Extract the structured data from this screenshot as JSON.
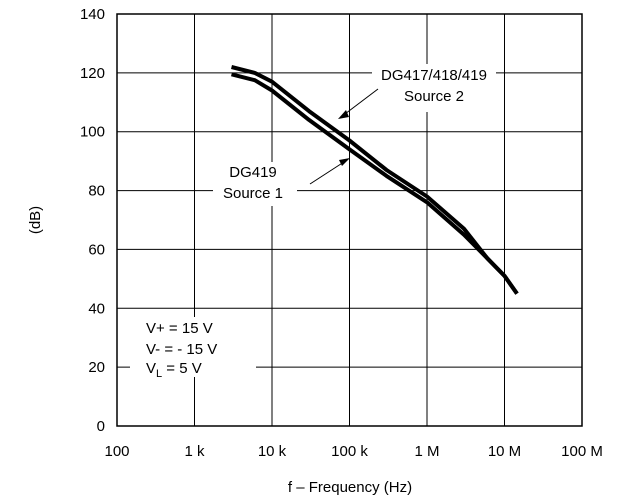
{
  "chart_data": {
    "type": "line",
    "title": "",
    "xlabel": "f – Frequency (Hz)",
    "ylabel": "(dB)",
    "xscale": "log",
    "xlim": [
      100,
      100000000
    ],
    "ylim": [
      0,
      140
    ],
    "grid": true,
    "xticks": [
      {
        "value": 100,
        "label": "100"
      },
      {
        "value": 1000,
        "label": "1 k"
      },
      {
        "value": 10000,
        "label": "10 k"
      },
      {
        "value": 100000,
        "label": "100 k"
      },
      {
        "value": 1000000,
        "label": "1 M"
      },
      {
        "value": 10000000,
        "label": "10 M"
      },
      {
        "value": 100000000,
        "label": "100 M"
      }
    ],
    "yticks": [
      {
        "value": 0,
        "label": "0"
      },
      {
        "value": 20,
        "label": "20"
      },
      {
        "value": 40,
        "label": "40"
      },
      {
        "value": 60,
        "label": "60"
      },
      {
        "value": 80,
        "label": "80"
      },
      {
        "value": 100,
        "label": "100"
      },
      {
        "value": 120,
        "label": "120"
      },
      {
        "value": 140,
        "label": "140"
      }
    ],
    "series": [
      {
        "name": "DG417/418/419 Source 2",
        "x": [
          3000,
          6000,
          10000,
          30000,
          100000,
          300000,
          1000000,
          3000000,
          6000000,
          10000000,
          14500000
        ],
        "y": [
          122,
          120,
          117,
          107,
          97,
          87,
          78,
          67,
          57,
          51,
          45
        ]
      },
      {
        "name": "DG419 Source 1",
        "x": [
          3000,
          6000,
          10000,
          30000,
          100000,
          300000,
          1000000,
          3000000,
          6000000,
          10000000,
          14500000
        ],
        "y": [
          119.5,
          117.5,
          114,
          104,
          94,
          85,
          76,
          65,
          57,
          51,
          45
        ]
      }
    ],
    "annotations": [
      {
        "lines": [
          "DG417/418/419",
          "Source 2"
        ]
      },
      {
        "lines": [
          "DG419",
          "Source 1"
        ]
      }
    ],
    "conditions": [
      {
        "label": "V+ = 15 V"
      },
      {
        "label": "V- = - 15 V"
      },
      {
        "label": "V",
        "sub": "L",
        "rest": " = 5 V"
      }
    ]
  }
}
